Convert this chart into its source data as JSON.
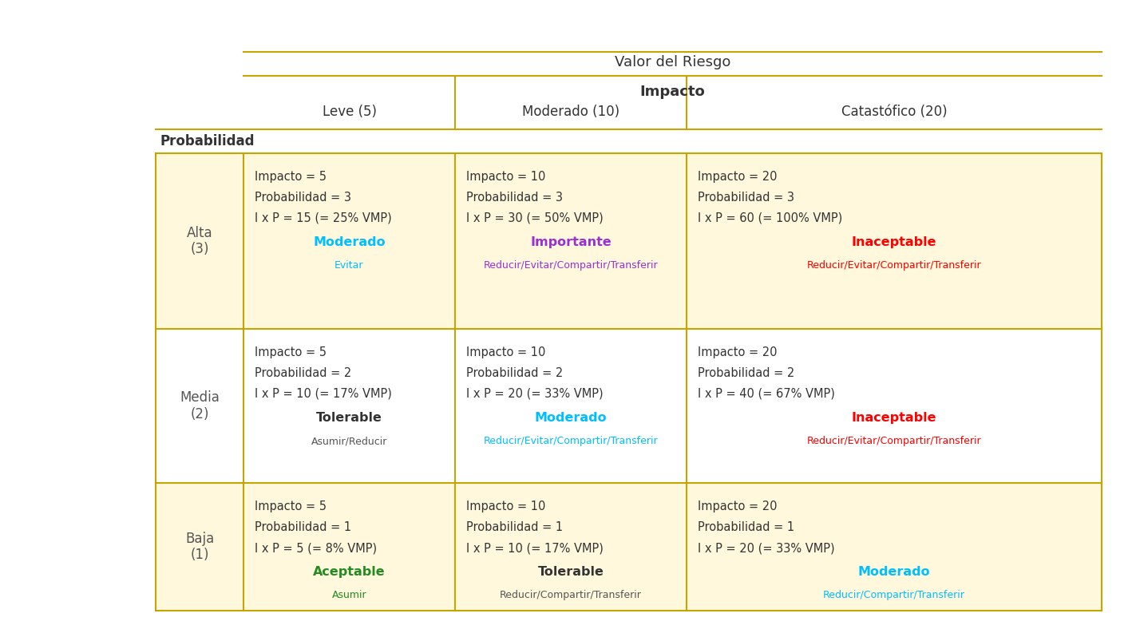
{
  "title": "Valor del Riesgo",
  "impacto_label": "Impacto",
  "probabilidad_label": "Probabilidad",
  "col_headers": [
    "Leve (5)",
    "Moderado (10)",
    "Catastófico (20)"
  ],
  "row_headers": [
    "Alta\n(3)",
    "Media\n(2)",
    "Baja\n(1)"
  ],
  "bg_color": "#FFFFFF",
  "cell_bg_yellow": "#FFF8DC",
  "cell_bg_white": "#FFFFFF",
  "row_bg": [
    true,
    false,
    true
  ],
  "line_color": "#C8A400",
  "cells": [
    {
      "row": 0,
      "col": 0,
      "lines": [
        "Impacto = 5",
        "Probabilidad = 3",
        "I x P = 15 (= 25% VMP)"
      ],
      "risk_label": "Moderado",
      "risk_color": "#00BFFF",
      "risk_bold": true,
      "action": "Evitar",
      "action_color": "#00BFFF"
    },
    {
      "row": 0,
      "col": 1,
      "lines": [
        "Impacto = 10",
        "Probabilidad = 3",
        "I x P = 30 (= 50% VMP)"
      ],
      "risk_label": "Importante",
      "risk_color": "#9B30D0",
      "risk_bold": true,
      "action": "Reducir/Evitar/Compartir/Transferir",
      "action_color": "#9B30D0"
    },
    {
      "row": 0,
      "col": 2,
      "lines": [
        "Impacto = 20",
        "Probabilidad = 3",
        "I x P = 60 (= 100% VMP)"
      ],
      "risk_label": "Inaceptable",
      "risk_color": "#FF0000",
      "risk_bold": true,
      "action": "Reducir/Evitar/Compartir/Transferir",
      "action_color": "#FF0000"
    },
    {
      "row": 1,
      "col": 0,
      "lines": [
        "Impacto = 5",
        "Probabilidad = 2",
        "I x P = 10 (= 17% VMP)"
      ],
      "risk_label": "Tolerable",
      "risk_color": "#333333",
      "risk_bold": true,
      "action": "Asumir/Reducir",
      "action_color": "#555555"
    },
    {
      "row": 1,
      "col": 1,
      "lines": [
        "Impacto = 10",
        "Probabilidad = 2",
        "I x P = 20 (= 33% VMP)"
      ],
      "risk_label": "Moderado",
      "risk_color": "#00BFFF",
      "risk_bold": true,
      "action": "Reducir/Evitar/Compartir/Transferir",
      "action_color": "#00BFFF"
    },
    {
      "row": 1,
      "col": 2,
      "lines": [
        "Impacto = 20",
        "Probabilidad = 2",
        "I x P = 40 (= 67% VMP)"
      ],
      "risk_label": "Inaceptable",
      "risk_color": "#FF0000",
      "risk_bold": true,
      "action": "Reducir/Evitar/Compartir/Transferir",
      "action_color": "#FF0000"
    },
    {
      "row": 2,
      "col": 0,
      "lines": [
        "Impacto = 5",
        "Probabilidad = 1",
        "I x P = 5 (= 8% VMP)"
      ],
      "risk_label": "Aceptable",
      "risk_color": "#228B22",
      "risk_bold": true,
      "action": "Asumir",
      "action_color": "#228B22"
    },
    {
      "row": 2,
      "col": 1,
      "lines": [
        "Impacto = 10",
        "Probabilidad = 1",
        "I x P = 10 (= 17% VMP)"
      ],
      "risk_label": "Tolerable",
      "risk_color": "#333333",
      "risk_bold": true,
      "action": "Reducir/Compartir/Transferir",
      "action_color": "#555555"
    },
    {
      "row": 2,
      "col": 2,
      "lines": [
        "Impacto = 20",
        "Probabilidad = 1",
        "I x P = 20 (= 33% VMP)"
      ],
      "risk_label": "Moderado",
      "risk_color": "#00BFFF",
      "risk_bold": true,
      "action": "Reducir/Compartir/Transferir",
      "action_color": "#00BFFF"
    }
  ]
}
